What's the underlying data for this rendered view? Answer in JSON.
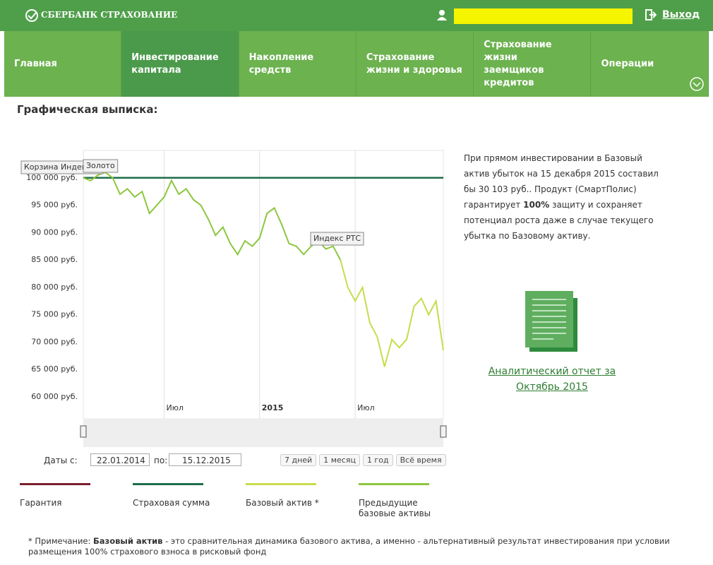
{
  "header": {
    "logo": "СБЕРБАНК СТРАХОВАНИЕ",
    "logout": "Выход"
  },
  "nav": {
    "items": [
      "Главная",
      "Инвестирование капитала",
      "Накопление средств",
      "Страхование жизни и здоровья",
      "Страхование жизни заемщиков кредитов",
      "Операции"
    ],
    "active": 1
  },
  "heading": "Графическая выписка:",
  "chart_data": {
    "type": "line",
    "categories": [
      null,
      null,
      null,
      null,
      null,
      null,
      null,
      null,
      null,
      null,
      null,
      "Июл",
      null,
      null,
      null,
      null,
      null,
      null,
      null,
      null,
      null,
      null,
      null,
      null,
      "2015",
      null,
      null,
      null,
      null,
      null,
      null,
      null,
      null,
      null,
      null,
      null,
      null,
      "Июл",
      null,
      null,
      null,
      null,
      null,
      null,
      null,
      null,
      null,
      null,
      null,
      null
    ],
    "series": [
      {
        "name": "Гарантия",
        "color": "#7a1f2f",
        "values": [
          null,
          null,
          null,
          null,
          null,
          null,
          null,
          null,
          null,
          null,
          null,
          null,
          null,
          null,
          null,
          null,
          null,
          null,
          null,
          null,
          null,
          null,
          null,
          null,
          null,
          null,
          null,
          null,
          null,
          null,
          null,
          null,
          null,
          null,
          null,
          null,
          null,
          null,
          null,
          null,
          null,
          null,
          null,
          null,
          null,
          null,
          null,
          null,
          null,
          null
        ]
      },
      {
        "name": "Страховая сумма",
        "color": "#1f6e4a",
        "values": [
          100000,
          100000,
          100000,
          100000,
          100000,
          100000,
          100000,
          100000,
          100000,
          100000,
          100000,
          100000,
          100000,
          100000,
          100000,
          100000,
          100000,
          100000,
          100000,
          100000,
          100000,
          100000,
          100000,
          100000,
          100000,
          100000,
          100000,
          100000,
          100000,
          100000,
          100000,
          100000,
          100000,
          100000,
          100000,
          100000,
          100000,
          100000,
          100000,
          100000,
          100000,
          100000,
          100000,
          100000,
          100000,
          100000,
          100000,
          100000,
          100000,
          100000
        ]
      },
      {
        "name": "Базовый актив *",
        "color": "#c8dc4c",
        "values": [
          null,
          null,
          null,
          null,
          null,
          null,
          null,
          null,
          null,
          null,
          null,
          null,
          null,
          null,
          null,
          null,
          null,
          null,
          null,
          null,
          null,
          null,
          null,
          null,
          null,
          null,
          null,
          null,
          null,
          null,
          null,
          null,
          null,
          null,
          null,
          85000,
          80000,
          77500,
          80000,
          73500,
          71000,
          65500,
          70500,
          69000,
          70500,
          76500,
          78000,
          75000,
          77500,
          68500
        ]
      },
      {
        "name": "Предыдущие базовые активы",
        "color": "#8cc63e",
        "values": [
          100000,
          99500,
          100500,
          101000,
          100000,
          97000,
          98000,
          96500,
          97500,
          93500,
          95000,
          96500,
          99500,
          97000,
          98000,
          96000,
          95000,
          92500,
          89500,
          91000,
          88000,
          86000,
          88500,
          87500,
          89000,
          93500,
          94500,
          91500,
          88000,
          87500,
          86000,
          87500,
          88500,
          87000,
          87500,
          85000,
          null,
          null,
          null,
          null,
          null,
          null,
          null,
          null,
          null,
          null,
          null,
          null,
          null,
          null
        ]
      }
    ],
    "ylim": [
      56000,
      105000
    ],
    "yticks": [
      {
        "value": 60000,
        "label": "60 000 руб."
      },
      {
        "value": 65000,
        "label": "65 000 руб."
      },
      {
        "value": 70000,
        "label": "70 000 руб."
      },
      {
        "value": 75000,
        "label": "75 000 руб."
      },
      {
        "value": 80000,
        "label": "80 000 руб."
      },
      {
        "value": 85000,
        "label": "85 000 руб."
      },
      {
        "value": 90000,
        "label": "90 000 руб."
      },
      {
        "value": 95000,
        "label": "95 000 руб."
      },
      {
        "value": 100000,
        "label": "100 000 руб."
      }
    ],
    "grid": false,
    "annotations": [
      "Корзина Индексов",
      "Золото",
      "Индекс РТС"
    ]
  },
  "controls": {
    "from_label": "Даты с:",
    "from": "22.01.2014",
    "to_label": "по:",
    "to": "15.12.2015",
    "ranges": [
      "7 дней",
      "1 месяц",
      "1 год",
      "Всё время"
    ]
  },
  "info": {
    "parts": [
      "При прямом инвестировании в Базовый актив убыток на 15 декабря 2015 составил бы 30 103 руб.. Продукт (СмартПолис) гарантирует ",
      "100%",
      " защиту и сохраняет потенциал роста даже в случае текущего убытка по Базовому активу."
    ]
  },
  "report_link": {
    "lines": [
      "Аналитический отчет за",
      "Октябрь 2015"
    ]
  },
  "note": {
    "parts": [
      "* Примечание: ",
      "Базовый актив",
      " - это сравнительная динамика базового актива, а именно - альтернативный результат инвестирования при условии размещения 100% страхового взноса в рисковый фонд"
    ]
  }
}
